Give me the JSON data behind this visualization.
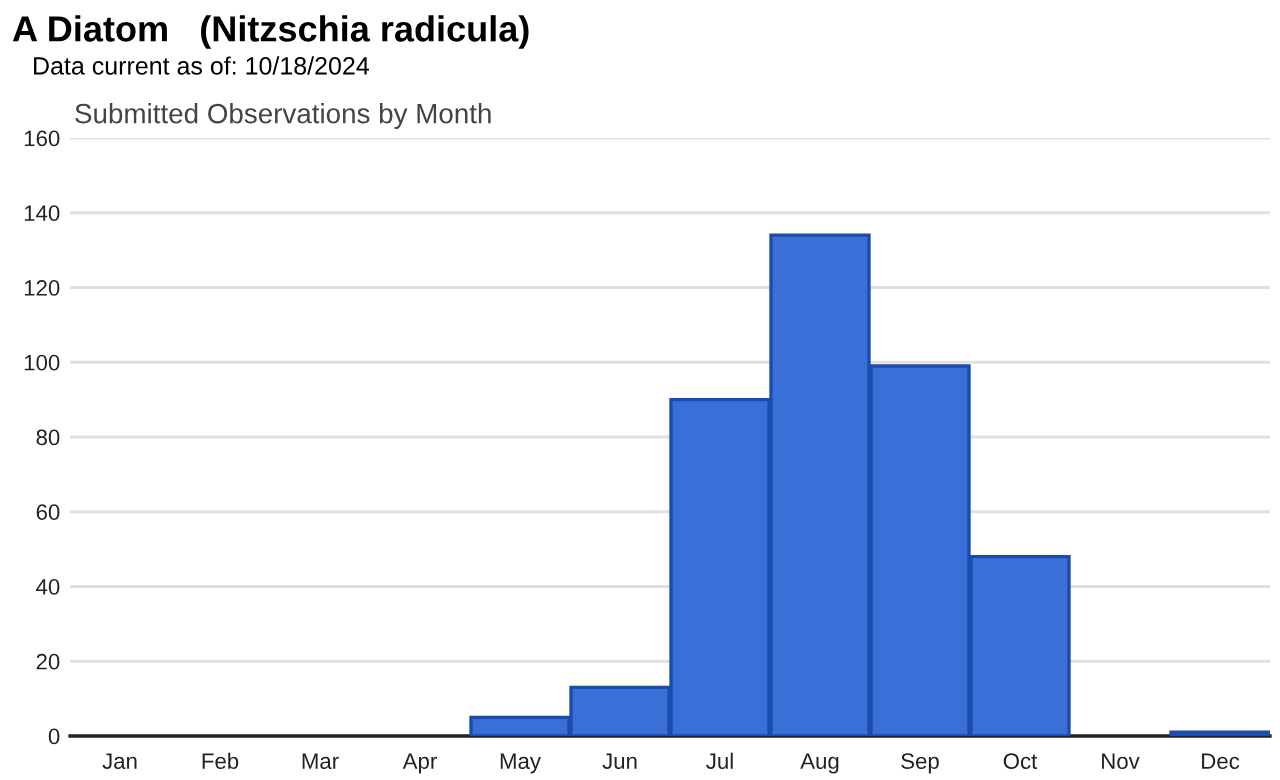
{
  "chart_data": {
    "type": "bar",
    "title": "A Diatom   (Nitzschia radicula)",
    "subtitle": "Data current as of: 10/18/2024",
    "annotations": [
      "Submitted Observations by Month"
    ],
    "categories": [
      "Jan",
      "Feb",
      "Mar",
      "Apr",
      "May",
      "Jun",
      "Jul",
      "Aug",
      "Sep",
      "Oct",
      "Nov",
      "Dec"
    ],
    "values": [
      0,
      0,
      0,
      0,
      5,
      13,
      90,
      134,
      99,
      48,
      0,
      1
    ],
    "color": "#3a6fd8",
    "ylim": [
      0,
      160
    ],
    "yticks": [
      0,
      20,
      40,
      60,
      80,
      100,
      120,
      140,
      160
    ],
    "grid": "y",
    "legend": false
  }
}
